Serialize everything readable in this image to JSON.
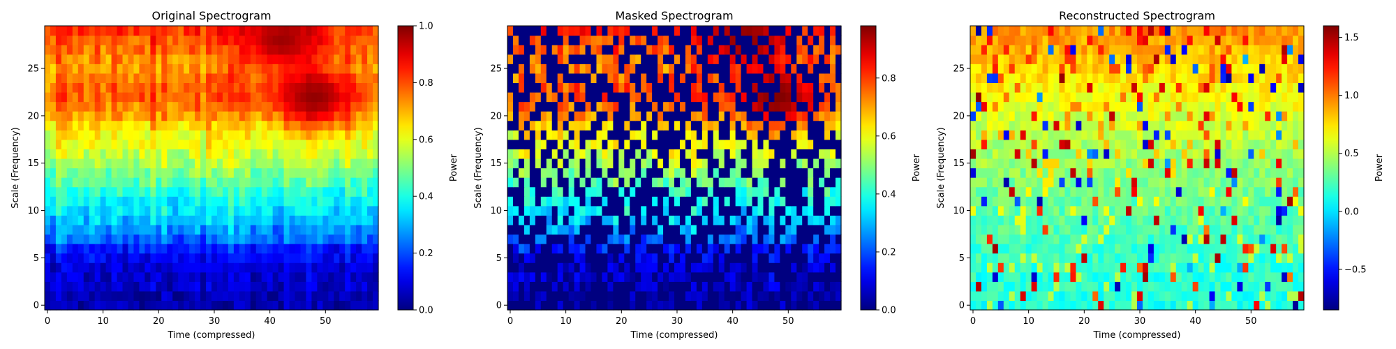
{
  "figure": {
    "background": "#ffffff"
  },
  "chart_data": [
    {
      "type": "heatmap",
      "title": "Original Spectrogram",
      "xlabel": "Time (compressed)",
      "ylabel": "Scale (Frequency)",
      "x_range": [
        -0.5,
        59.5
      ],
      "y_range": [
        -0.5,
        29.5
      ],
      "x_ticks": [
        0,
        10,
        20,
        30,
        40,
        50
      ],
      "y_ticks": [
        0,
        5,
        10,
        15,
        20,
        25
      ],
      "n_time": 60,
      "n_scale": 30,
      "colormap": "jet",
      "vmin": 0.0,
      "vmax": 1.0,
      "colorbar": {
        "label": "Power",
        "ticks": [
          0.0,
          0.2,
          0.4,
          0.6,
          0.8,
          1.0
        ],
        "tick_labels": [
          "0.0",
          "0.2",
          "0.4",
          "0.6",
          "0.8",
          "1.0"
        ]
      },
      "profile_by_scale": [
        0.04,
        0.05,
        0.07,
        0.08,
        0.09,
        0.12,
        0.16,
        0.23,
        0.28,
        0.32,
        0.36,
        0.38,
        0.42,
        0.46,
        0.5,
        0.54,
        0.58,
        0.61,
        0.63,
        0.67,
        0.72,
        0.76,
        0.79,
        0.78,
        0.76,
        0.74,
        0.75,
        0.77,
        0.8,
        0.84
      ],
      "hotspots": [
        {
          "scale_center": 22,
          "time_center": 48,
          "peak": 0.98
        },
        {
          "scale_center": 28,
          "time_center": 42,
          "peak": 0.97
        }
      ]
    },
    {
      "type": "heatmap",
      "title": "Masked Spectrogram",
      "xlabel": "Time (compressed)",
      "ylabel": "Scale (Frequency)",
      "x_range": [
        -0.5,
        59.5
      ],
      "y_range": [
        -0.5,
        29.5
      ],
      "x_ticks": [
        0,
        10,
        20,
        30,
        40,
        50
      ],
      "y_ticks": [
        0,
        5,
        10,
        15,
        20,
        25
      ],
      "n_time": 60,
      "n_scale": 30,
      "colormap": "jet",
      "vmin": 0.0,
      "vmax": 0.98,
      "mask_fraction": 0.5,
      "mask_value": 0.0,
      "colorbar": {
        "label": "Power",
        "ticks": [
          0.0,
          0.2,
          0.4,
          0.6,
          0.8
        ],
        "tick_labels": [
          "0.0",
          "0.2",
          "0.4",
          "0.6",
          "0.8"
        ]
      }
    },
    {
      "type": "heatmap",
      "title": "Reconstructed Spectrogram",
      "xlabel": "Time (compressed)",
      "ylabel": "Scale (Frequency)",
      "x_range": [
        -0.5,
        59.5
      ],
      "y_range": [
        -0.5,
        29.5
      ],
      "x_ticks": [
        0,
        10,
        20,
        30,
        40,
        50
      ],
      "y_ticks": [
        0,
        5,
        10,
        15,
        20,
        25
      ],
      "n_time": 60,
      "n_scale": 30,
      "colormap": "jet",
      "vmin": -0.85,
      "vmax": 1.6,
      "baseline_low": 0.15,
      "baseline_high": 0.95,
      "colorbar": {
        "label": "Power",
        "ticks": [
          -0.5,
          0.0,
          0.5,
          1.0,
          1.5
        ],
        "tick_labels": [
          "−0.5",
          "0.0",
          "0.5",
          "1.0",
          "1.5"
        ]
      }
    }
  ]
}
